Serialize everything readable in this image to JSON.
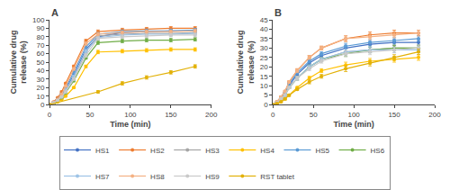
{
  "chart_data": [
    {
      "type": "line",
      "title": "A",
      "x_label": "Time (min)",
      "y_label": "Cumulative drug\nrelease (%)",
      "xlim": [
        0,
        200
      ],
      "ylim": [
        0,
        100
      ],
      "xticks": [
        0,
        50,
        100,
        150,
        200
      ],
      "yticks": [
        0,
        10,
        20,
        30,
        40,
        50,
        60,
        70,
        80,
        90,
        100
      ],
      "grid": false,
      "legend": "bottom",
      "marker": "circle",
      "series": [
        {
          "name": "HS1",
          "color": "#4472C4",
          "x": [
            0,
            5,
            10,
            15,
            20,
            30,
            45,
            60,
            90,
            120,
            150,
            180
          ],
          "values": [
            0,
            2,
            5,
            10,
            18,
            35,
            65,
            80,
            85,
            86,
            87,
            87
          ],
          "error": [
            0,
            0.5,
            0.5,
            0.5,
            1,
            1.5,
            2,
            2,
            2,
            2,
            2,
            2
          ]
        },
        {
          "name": "HS2",
          "color": "#ED7D31",
          "x": [
            0,
            5,
            10,
            15,
            20,
            30,
            45,
            60,
            90,
            120,
            150,
            180
          ],
          "values": [
            0,
            3,
            8,
            15,
            25,
            45,
            75,
            86,
            88,
            89,
            90,
            90
          ],
          "error": [
            0,
            0.5,
            0.5,
            1,
            1,
            1.5,
            2,
            2,
            2,
            2,
            2,
            2
          ]
        },
        {
          "name": "HS3",
          "color": "#A5A5A5",
          "x": [
            0,
            5,
            10,
            15,
            20,
            30,
            45,
            60,
            90,
            120,
            150,
            180
          ],
          "values": [
            0,
            2,
            5,
            9,
            16,
            32,
            62,
            81,
            83,
            84,
            84,
            85
          ],
          "error": [
            0,
            0.5,
            0.5,
            0.5,
            1,
            1.5,
            2,
            2,
            2,
            2,
            2,
            2
          ]
        },
        {
          "name": "HS4",
          "color": "#FFC000",
          "x": [
            0,
            5,
            10,
            15,
            20,
            30,
            45,
            60,
            90,
            120,
            150,
            180
          ],
          "values": [
            0,
            1,
            3,
            6,
            10,
            20,
            45,
            62,
            63,
            64,
            65,
            65
          ],
          "error": [
            0,
            0.5,
            0.5,
            0.5,
            1,
            1,
            1.5,
            2,
            2,
            2,
            2,
            2
          ]
        },
        {
          "name": "HS5",
          "color": "#5B9BD5",
          "x": [
            0,
            5,
            10,
            15,
            20,
            30,
            45,
            60,
            90,
            120,
            150,
            180
          ],
          "values": [
            0,
            2,
            6,
            12,
            20,
            38,
            68,
            83,
            86,
            87,
            87,
            88
          ],
          "error": [
            0,
            0.5,
            0.5,
            1,
            1,
            1.5,
            2,
            2,
            2,
            2,
            2,
            2
          ]
        },
        {
          "name": "HS6",
          "color": "#70AD47",
          "x": [
            0,
            5,
            10,
            15,
            20,
            30,
            45,
            60,
            90,
            120,
            150,
            180
          ],
          "values": [
            0,
            1,
            4,
            8,
            14,
            28,
            55,
            73,
            75,
            76,
            76,
            77
          ],
          "error": [
            0,
            0.5,
            0.5,
            0.5,
            1,
            1,
            1.5,
            2,
            2,
            2,
            2,
            2
          ]
        },
        {
          "name": "HS7",
          "color": "#9DC3E6",
          "x": [
            0,
            5,
            10,
            15,
            20,
            30,
            45,
            60,
            90,
            120,
            150,
            180
          ],
          "values": [
            0,
            2,
            5,
            10,
            17,
            33,
            63,
            79,
            82,
            83,
            83,
            84
          ],
          "error": [
            0,
            0.5,
            0.5,
            0.5,
            1,
            1.5,
            2,
            2,
            2,
            2,
            2,
            2
          ]
        },
        {
          "name": "HS8",
          "color": "#F4B183",
          "x": [
            0,
            5,
            10,
            15,
            20,
            30,
            45,
            60,
            90,
            120,
            150,
            180
          ],
          "values": [
            0,
            2,
            6,
            12,
            22,
            42,
            72,
            83,
            85,
            86,
            86,
            87
          ],
          "error": [
            0,
            0.5,
            0.5,
            1,
            1,
            1.5,
            2,
            2,
            2,
            2,
            2,
            2
          ]
        },
        {
          "name": "HS9",
          "color": "#C9C9C9",
          "x": [
            0,
            5,
            10,
            15,
            20,
            30,
            45,
            60,
            90,
            120,
            150,
            180
          ],
          "values": [
            0,
            2,
            5,
            9,
            15,
            30,
            58,
            78,
            80,
            81,
            82,
            82
          ],
          "error": [
            0,
            0.5,
            0.5,
            0.5,
            1,
            1.5,
            2,
            2,
            2,
            2,
            2,
            2
          ]
        },
        {
          "name": "RST tablet",
          "color": "#E2B108",
          "x": [
            0,
            60,
            90,
            120,
            150,
            180
          ],
          "values": [
            0,
            15,
            25,
            32,
            38,
            45
          ],
          "error": [
            0,
            1.5,
            2,
            2,
            2,
            2
          ]
        }
      ]
    },
    {
      "type": "line",
      "title": "B",
      "x_label": "Time (min)",
      "y_label": "Cumulative drug\nrelease (%)",
      "xlim": [
        0,
        200
      ],
      "ylim": [
        0,
        45
      ],
      "xticks": [
        0,
        50,
        100,
        150,
        200
      ],
      "yticks": [
        0,
        5,
        10,
        15,
        20,
        25,
        30,
        35,
        40,
        45
      ],
      "grid": false,
      "legend": "bottom",
      "marker": "circle",
      "series": [
        {
          "name": "HS1",
          "color": "#4472C4",
          "x": [
            0,
            5,
            10,
            15,
            20,
            30,
            45,
            60,
            90,
            120,
            150,
            180
          ],
          "values": [
            0,
            1,
            3,
            6,
            10,
            16,
            22,
            26,
            30,
            32,
            33,
            33
          ],
          "error": [
            0,
            0.3,
            0.5,
            0.5,
            0.5,
            1,
            1,
            1,
            1.5,
            1.5,
            1.5,
            1.5
          ]
        },
        {
          "name": "HS2",
          "color": "#ED7D31",
          "x": [
            0,
            5,
            10,
            15,
            20,
            30,
            45,
            60,
            90,
            120,
            150,
            180
          ],
          "values": [
            0,
            1.5,
            4,
            7,
            12,
            18,
            25,
            30,
            35,
            37,
            38,
            38
          ],
          "error": [
            0,
            0.3,
            0.5,
            0.5,
            0.5,
            1,
            1,
            1,
            1.5,
            1.5,
            1.5,
            1.5
          ]
        },
        {
          "name": "HS3",
          "color": "#A5A5A5",
          "x": [
            0,
            5,
            10,
            15,
            20,
            30,
            45,
            60,
            90,
            120,
            150,
            180
          ],
          "values": [
            0,
            1,
            3,
            5,
            9,
            14,
            20,
            24,
            28,
            29,
            30,
            30
          ],
          "error": [
            0,
            0.3,
            0.5,
            0.5,
            0.5,
            1,
            1,
            1,
            1.5,
            1.5,
            1.5,
            1.5
          ]
        },
        {
          "name": "HS4",
          "color": "#FFC000",
          "x": [
            0,
            5,
            10,
            15,
            20,
            30,
            45,
            60,
            90,
            120,
            150,
            180
          ],
          "values": [
            0,
            0.5,
            1.5,
            3,
            5,
            9,
            14,
            18,
            21,
            23,
            24,
            25
          ],
          "error": [
            0,
            0.3,
            0.3,
            0.5,
            0.5,
            0.5,
            1,
            1,
            1.5,
            1.5,
            1.5,
            1.5
          ]
        },
        {
          "name": "HS5",
          "color": "#5B9BD5",
          "x": [
            0,
            5,
            10,
            15,
            20,
            30,
            45,
            60,
            90,
            120,
            150,
            180
          ],
          "values": [
            0,
            1,
            3,
            6,
            11,
            17,
            23,
            27,
            31,
            33,
            34,
            35
          ],
          "error": [
            0,
            0.3,
            0.5,
            0.5,
            0.5,
            1,
            1,
            1,
            1.5,
            1.5,
            1.5,
            1.5
          ]
        },
        {
          "name": "HS6",
          "color": "#70AD47",
          "x": [
            0,
            5,
            10,
            15,
            20,
            30,
            45,
            60,
            90,
            120,
            150,
            180
          ],
          "values": [
            0,
            1,
            3,
            5,
            9,
            14,
            20,
            24,
            27,
            29,
            30,
            30
          ],
          "error": [
            0,
            0.3,
            0.5,
            0.5,
            0.5,
            1,
            1,
            1,
            1.5,
            1.5,
            1.5,
            1.5
          ]
        },
        {
          "name": "HS7",
          "color": "#9DC3E6",
          "x": [
            0,
            5,
            10,
            15,
            20,
            30,
            45,
            60,
            90,
            120,
            150,
            180
          ],
          "values": [
            0,
            0.8,
            2.5,
            5,
            9,
            14,
            20,
            24,
            28,
            29,
            29,
            29
          ],
          "error": [
            0,
            0.3,
            0.5,
            0.5,
            0.5,
            1,
            1,
            1,
            1.5,
            1.5,
            1.5,
            1.5
          ]
        },
        {
          "name": "HS8",
          "color": "#F4B183",
          "x": [
            0,
            5,
            10,
            15,
            20,
            30,
            45,
            60,
            90,
            120,
            150,
            180
          ],
          "values": [
            0,
            1.5,
            4,
            7,
            12,
            18,
            25,
            30,
            35,
            36,
            37,
            38
          ],
          "error": [
            0,
            0.3,
            0.5,
            0.5,
            0.5,
            1,
            1,
            1,
            1.5,
            1.5,
            1.5,
            1.5
          ]
        },
        {
          "name": "HS9",
          "color": "#C9C9C9",
          "x": [
            0,
            5,
            10,
            15,
            20,
            30,
            45,
            60,
            90,
            120,
            150,
            180
          ],
          "values": [
            0,
            1,
            3,
            5,
            9,
            14,
            19,
            23,
            27,
            28,
            29,
            30
          ],
          "error": [
            0,
            0.3,
            0.5,
            0.5,
            0.5,
            1,
            1,
            1,
            1.5,
            1.5,
            1.5,
            1.5
          ]
        },
        {
          "name": "RST tablet",
          "color": "#E2B108",
          "x": [
            0,
            5,
            10,
            15,
            20,
            30,
            45,
            60,
            90,
            120,
            150,
            180
          ],
          "values": [
            0,
            0.5,
            1.5,
            3,
            5,
            8,
            12,
            15,
            19,
            22,
            25,
            28
          ],
          "error": [
            0,
            0.3,
            0.3,
            0.5,
            0.5,
            0.5,
            1,
            1,
            1.5,
            1.5,
            1.5,
            1.5
          ]
        }
      ]
    }
  ]
}
